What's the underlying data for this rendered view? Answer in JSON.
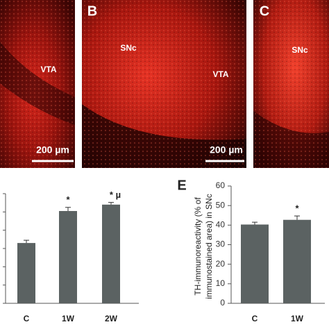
{
  "images": [
    {
      "texts": [
        "VTA"
      ],
      "scale": "200 µm"
    },
    {
      "label": "B",
      "texts": [
        "SNc",
        "VTA"
      ],
      "scale": "200 µm"
    },
    {
      "label": "C",
      "texts": [
        "SNc"
      ]
    }
  ],
  "chart_data": [
    {
      "type": "bar",
      "categories": [
        "C",
        "1W",
        "2W"
      ],
      "values": [
        3.3,
        5.05,
        5.4
      ],
      "errors": [
        0.15,
        0.2,
        0.12
      ],
      "annotations": [
        null,
        "*",
        "* µ"
      ],
      "color": "#5b6262",
      "ylim": [
        0,
        6
      ],
      "yticks": [
        0,
        1,
        2,
        3,
        4,
        5,
        6
      ],
      "tick_labels": false
    },
    {
      "type": "bar",
      "label": "E",
      "ylabel": [
        "TH-immunoreactivity (% of",
        "immunostained area) in SNc"
      ],
      "categories": [
        "C",
        "1W"
      ],
      "values": [
        40.3,
        42.7
      ],
      "errors": [
        1.2,
        2.0
      ],
      "annotations": [
        null,
        "*"
      ],
      "color": "#5b6262",
      "ylim": [
        0,
        60
      ],
      "yticks": [
        0,
        10,
        20,
        30,
        40,
        50,
        60
      ],
      "tick_labels": true
    }
  ]
}
